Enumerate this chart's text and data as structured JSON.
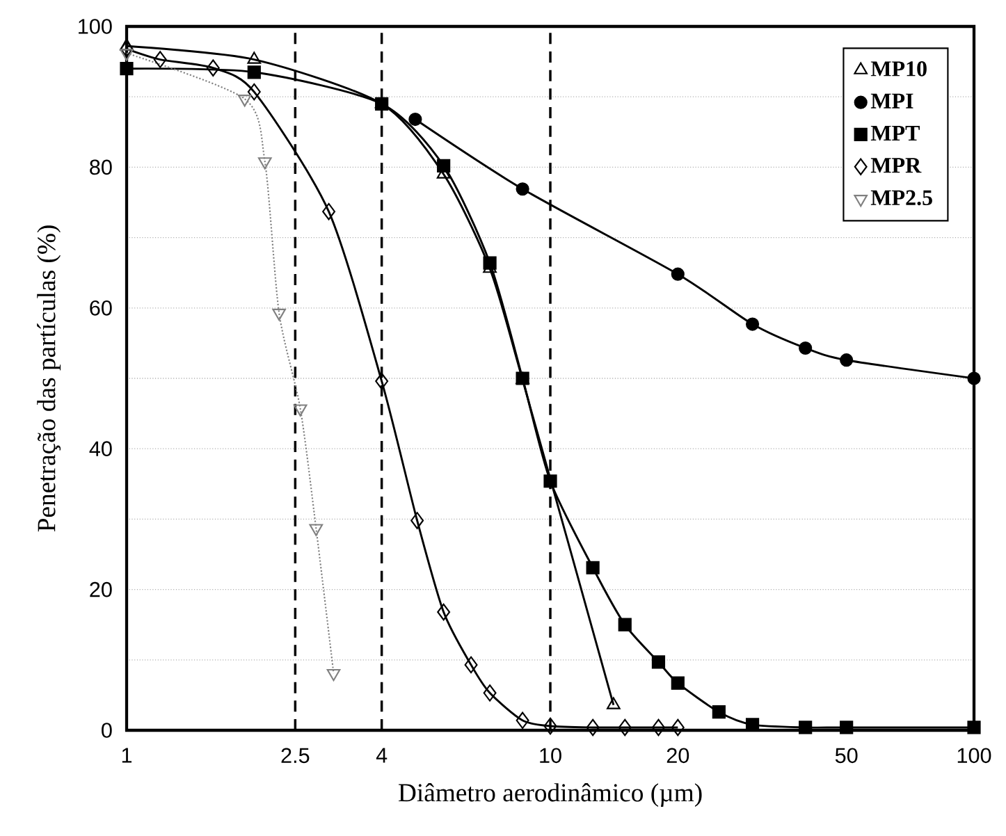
{
  "chart_data": {
    "type": "line",
    "xlabel": "Diâmetro aerodinâmico (µm)",
    "ylabel": "Penetração das partículas (%)",
    "log": "x",
    "xlim": [
      1,
      100
    ],
    "ylim": [
      0,
      100
    ],
    "xticks": [
      1,
      2.5,
      4,
      10,
      20,
      50,
      100
    ],
    "yticks": [
      0,
      {
        "value": 10,
        "label": null
      },
      20,
      {
        "value": 30,
        "label": null
      },
      40,
      {
        "value": 50,
        "label": null
      },
      60,
      {
        "value": 70,
        "label": null
      },
      80,
      {
        "value": 90,
        "label": null
      },
      100
    ],
    "grid": true,
    "legend": "top right",
    "line_style": "solid",
    "ref_lines": [
      {
        "axis": "x",
        "value": 2.5,
        "color": "#000000",
        "line_style": "dashed"
      },
      {
        "axis": "x",
        "value": 4,
        "color": "#000000",
        "line_style": "dashed"
      },
      {
        "axis": "x",
        "value": 10,
        "color": "#000000",
        "line_style": "dashed"
      }
    ],
    "series": [
      {
        "name": "MP10",
        "color": "#000000",
        "marker": "triangle",
        "x": [
          1,
          2,
          4,
          5.6,
          7.2,
          8.6,
          14.1
        ],
        "values": [
          97.2,
          95.3,
          89,
          79,
          65.6,
          49.8,
          3.6
        ]
      },
      {
        "name": "MPI",
        "color": "#000000",
        "marker": "circle",
        "x": [
          4.8,
          8.6,
          20,
          30,
          40,
          50,
          100
        ],
        "values": [
          86.8,
          76.9,
          64.8,
          57.7,
          54.3,
          52.6,
          50
        ]
      },
      {
        "name": "MPT",
        "color": "#000000",
        "marker": "square",
        "x": [
          1,
          2,
          4,
          5.6,
          7.2,
          8.6,
          10,
          12.6,
          15,
          18,
          20,
          25,
          30,
          40,
          50,
          100
        ],
        "values": [
          94,
          93.5,
          89,
          80.2,
          66.4,
          50,
          35.4,
          23.1,
          15,
          9.7,
          6.7,
          2.6,
          0.8,
          0.4,
          0.4,
          0.4
        ]
      },
      {
        "name": "MPR",
        "color": "#000000",
        "marker": "diamond",
        "x": [
          1,
          1.2,
          1.6,
          2,
          3,
          4,
          4.85,
          5.6,
          6.5,
          7.2,
          8.6,
          10,
          12.6,
          15,
          18,
          20
        ],
        "values": [
          96.8,
          95.3,
          94.1,
          90.7,
          73.7,
          49.6,
          29.8,
          16.8,
          9.3,
          5.3,
          1.4,
          0.6,
          0.4,
          0.4,
          0.4,
          0.4
        ]
      },
      {
        "name": "MP2.5",
        "color": "#808080",
        "marker": "triangle_down",
        "line_style": "dotted",
        "x": [
          1,
          1.9,
          2.12,
          2.29,
          2.57,
          2.8,
          3.08
        ],
        "values": [
          96.2,
          89.7,
          80.8,
          59.3,
          45.7,
          28.7,
          8.1
        ]
      }
    ]
  }
}
